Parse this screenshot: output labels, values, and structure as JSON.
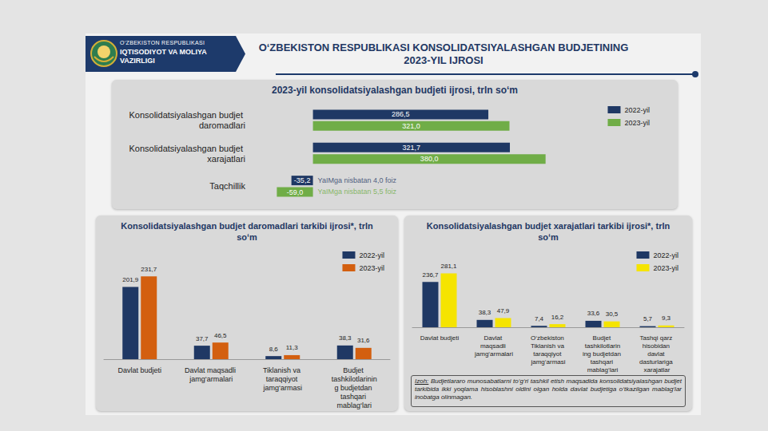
{
  "header": {
    "ministry": [
      "O‘ZBEKISTON RESPUBLIKASI",
      "IQTISODIYOT VA MOLIYA VAZIRLIGI"
    ],
    "title": "O‘ZBEKISTON RESPUBLIKASI KONSOLIDATSIYALASHGAN BUDJETINING 2023-YIL IJROSI"
  },
  "chart_data": [
    {
      "type": "bar",
      "orientation": "horizontal",
      "title": "2023-yil konsolidatsiyalashgan budjeti ijrosi, trln so‘m",
      "categories": [
        "Konsolidatsiyalashgan budjet daromadlari",
        "Konsolidatsiyalashgan budjet xarajatlari",
        "Taqchillik"
      ],
      "series": [
        {
          "name": "2022-yil",
          "color": "#1f3864",
          "values": [
            286.5,
            321.7,
            -35.2
          ],
          "value_labels": [
            "286,5",
            "321,7",
            "-35,2"
          ],
          "annotations": [
            null,
            null,
            "YaIMga nisbatan 4,0 foiz"
          ]
        },
        {
          "name": "2023-yil",
          "color": "#70ad47",
          "values": [
            321.0,
            380.0,
            -59.0
          ],
          "value_labels": [
            "321,0",
            "380,0",
            "-59,0"
          ],
          "annotations": [
            null,
            null,
            "YaIMga nisbatan 5,5 foiz"
          ]
        }
      ],
      "data_labels": true,
      "tick_labels": "y",
      "grid": false,
      "legend": "top right"
    },
    {
      "type": "bar",
      "title": "Konsolidatsiyalashgan budjet daromadlari tarkibi ijrosi*, trln so‘m",
      "categories": [
        "Davlat budjeti",
        "Davlat maqsadli jamg‘armalari",
        "Tiklanish va taraqqiyot jamg‘armasi",
        "Budjet tashkilotlarining budjetdan tashqari mablag‘lari"
      ],
      "series": [
        {
          "name": "2022-yil",
          "color": "#1f3864",
          "values": [
            201.9,
            37.7,
            8.6,
            38.3
          ],
          "value_labels": [
            "201,9",
            "37,7",
            "8,6",
            "38,3"
          ]
        },
        {
          "name": "2023-yil",
          "color": "#d35f0f",
          "values": [
            231.7,
            46.5,
            11.3,
            31.6
          ],
          "value_labels": [
            "231,7",
            "46,5",
            "11,3",
            "31,6"
          ]
        }
      ],
      "data_labels": true,
      "tick_labels": "x",
      "grid": false,
      "legend": "top right"
    },
    {
      "type": "bar",
      "title": "Konsolidatsiyalashgan budjet xarajatlari tarkibi ijrosi*, trln so‘m",
      "categories": [
        "Davlat budjeti",
        "Davlat maqsadli jamg‘armalari",
        "O‘zbekiston Tiklanish va taraqqiyot jamg‘armasi",
        "Budjet tashkilotlarining budjetdan tashqari mablag‘lari",
        "Tashqi qarz hisobidan davlat dasturlariga xarajatlar"
      ],
      "series": [
        {
          "name": "2022-yil",
          "color": "#1f3864",
          "values": [
            236.7,
            38.3,
            7.4,
            33.6,
            5.7
          ],
          "value_labels": [
            "236,7",
            "38,3",
            "7,4",
            "33,6",
            "5,7"
          ]
        },
        {
          "name": "2023-yil",
          "color": "#f5e400",
          "values": [
            281.1,
            47.9,
            16.2,
            30.5,
            9.3
          ],
          "value_labels": [
            "281,1",
            "47,9",
            "16,2",
            "30,5",
            "9,3"
          ]
        }
      ],
      "data_labels": true,
      "tick_labels": "x",
      "grid": false,
      "legend": "top right"
    }
  ],
  "note": {
    "label": "Izoh:",
    "text": "Budjetlararo munosabatlarni to‘g‘ri tashkil etish maqsadida konsolidatsiyalashgan budjet tarkibida ikki yoqlama hisoblashni oldini olgan holda davlat budjetiga o‘tkazilgan mablag‘lar inobatga olinmagan."
  }
}
